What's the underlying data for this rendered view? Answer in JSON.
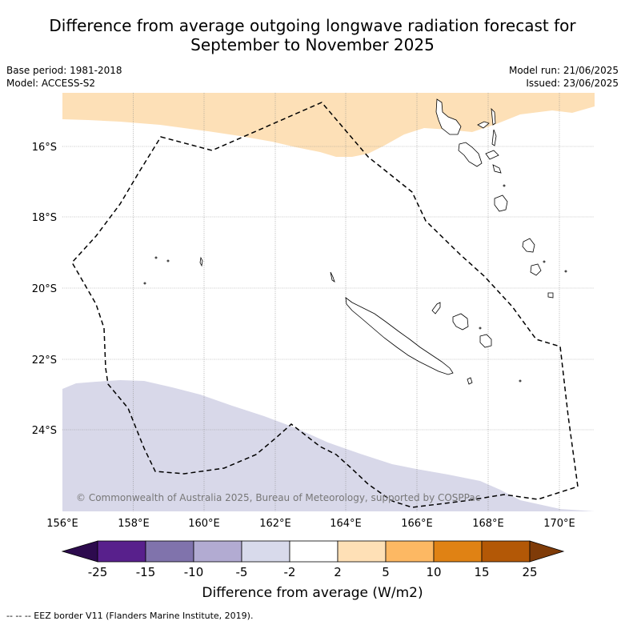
{
  "title_line1": "Difference from average outgoing longwave radiation forecast for",
  "title_line2": "September to November 2025",
  "meta_left": {
    "base_period": "Base period: 1981-2018",
    "model": "Model: ACCESS-S2"
  },
  "meta_right": {
    "model_run": "Model run: 21/06/2025",
    "issued": "Issued: 23/06/2025"
  },
  "map": {
    "lon_ticks": [
      "156°E",
      "158°E",
      "160°E",
      "162°E",
      "164°E",
      "166°E",
      "168°E",
      "170°E"
    ],
    "lat_ticks": [
      "16°S",
      "18°S",
      "20°S",
      "22°S",
      "24°S"
    ],
    "copyright": "© Commonwealth of Australia 2025, Bureau of Meteorology, supported by COSPPac",
    "colors": {
      "positive_2_5": "#fde0b7",
      "negative_5_2": "#d8d8e9",
      "eez_line": "#000000",
      "grid": "#888888"
    }
  },
  "colorbar": {
    "tick_labels": [
      "-25",
      "-15",
      "-10",
      "-5",
      "-2",
      "2",
      "5",
      "10",
      "15",
      "25"
    ],
    "colors": [
      "#2d0b4e",
      "#58208c",
      "#8073ac",
      "#b2abd2",
      "#d8daeb",
      "#ffffff",
      "#fee0b6",
      "#fdb863",
      "#e08214",
      "#b35806",
      "#7f3b08"
    ],
    "title": "Difference from average (W/m2)"
  },
  "footnote": "-- -- -- EEZ border V11 (Flanders Marine Institute, 2019)."
}
